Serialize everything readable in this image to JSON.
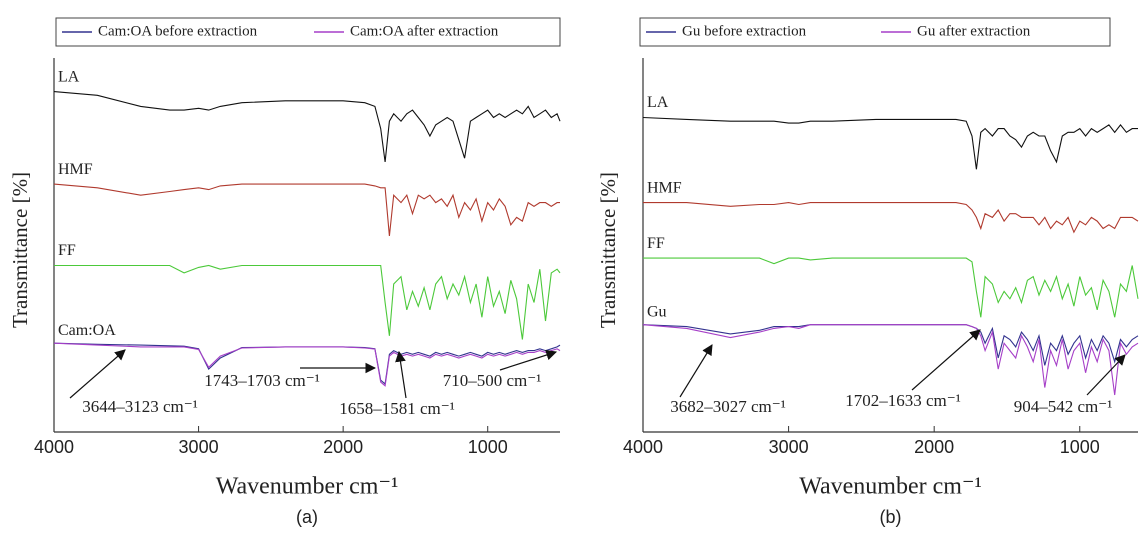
{
  "chart_data": [
    {
      "type": "line",
      "caption": "(a)",
      "xlabel": "Wavenumber cm⁻¹",
      "ylabel": "Transmittance [%]",
      "xlim": [
        4000,
        500
      ],
      "xticks": [
        4000,
        3000,
        2000,
        1000
      ],
      "ylim": [
        0,
        100
      ],
      "legend": "top",
      "sample_label": "Cam:OA",
      "x": [
        4000,
        3700,
        3400,
        3200,
        3100,
        3000,
        2930,
        2850,
        2700,
        2400,
        2000,
        1850,
        1780,
        1740,
        1710,
        1680,
        1650,
        1600,
        1560,
        1520,
        1480,
        1440,
        1400,
        1360,
        1320,
        1280,
        1240,
        1200,
        1160,
        1120,
        1080,
        1040,
        1000,
        960,
        920,
        880,
        840,
        800,
        760,
        720,
        680,
        640,
        600,
        560,
        520,
        500
      ],
      "traces": [
        {
          "label": "LA",
          "color": "#111111",
          "values": [
            92,
            91,
            88,
            87,
            87,
            87.5,
            87,
            88,
            89,
            89.5,
            89.5,
            89,
            88,
            82,
            73,
            84,
            86,
            84,
            86,
            87,
            85,
            83,
            80,
            83,
            84,
            85,
            84,
            79,
            74,
            84,
            85,
            86,
            87,
            85,
            86,
            85,
            86,
            87,
            86,
            88,
            85,
            86,
            87,
            85,
            86,
            84
          ]
        },
        {
          "label": "HMF",
          "color": "#b03a2e",
          "values": [
            67,
            66,
            64,
            65,
            65.5,
            66,
            65.5,
            66.5,
            67,
            67,
            67,
            67,
            66.5,
            66,
            66,
            53,
            64,
            62,
            64,
            59,
            64,
            63,
            64,
            62,
            63,
            61,
            64,
            58,
            62,
            60,
            63,
            57,
            62,
            60,
            63,
            61,
            56,
            58,
            57,
            62,
            61,
            62,
            62,
            61,
            62,
            62
          ]
        },
        {
          "label": "FF",
          "color": "#4cc93a",
          "values": [
            45,
            45,
            45,
            45,
            43,
            44.5,
            45,
            44,
            45,
            45,
            45,
            45,
            45,
            45,
            35,
            26,
            40,
            42,
            33,
            38,
            34,
            39,
            33,
            40,
            42,
            36,
            40,
            37,
            42,
            35,
            40,
            31,
            42,
            34,
            38,
            32,
            41,
            36,
            25,
            40,
            35,
            44,
            30,
            43,
            44,
            43
          ]
        }
      ],
      "series": [
        {
          "name": "Cam:OA before extraction",
          "color": "#33338f",
          "values": [
            24,
            23.7,
            23.5,
            23.3,
            23.2,
            22.5,
            17,
            20,
            22.8,
            23,
            23,
            22.8,
            22.5,
            14,
            13,
            21,
            22,
            21,
            21.5,
            21,
            21.5,
            21,
            20.5,
            21.5,
            21,
            21.5,
            21,
            20.5,
            21,
            21.5,
            21,
            20.5,
            21.5,
            21,
            21.5,
            21,
            21.5,
            22,
            21.5,
            22,
            22,
            22.5,
            22,
            22.5,
            23,
            23.5
          ]
        },
        {
          "name": "Cam:OA after extraction",
          "color": "#a63fc8",
          "values": [
            24,
            23.5,
            23,
            23,
            23,
            22.3,
            17.5,
            20.5,
            22.7,
            23,
            23,
            22.7,
            22.4,
            13.5,
            12.5,
            20.5,
            21.5,
            20.5,
            21,
            20.5,
            21,
            20.5,
            20,
            21,
            20.5,
            21,
            20.5,
            20,
            20.5,
            21,
            20.5,
            20,
            21,
            20.5,
            21,
            20.5,
            21,
            21.5,
            21,
            21.5,
            21.5,
            22,
            21.5,
            22,
            22.5,
            22
          ]
        }
      ],
      "annotations": [
        "3644–3123 cm⁻¹",
        "1743–1703 cm⁻¹",
        "1658–1581 cm⁻¹",
        "710–500 cm⁻¹"
      ]
    },
    {
      "type": "line",
      "caption": "(b)",
      "xlabel": "Wavenumber cm⁻¹",
      "ylabel": "Transmittance [%]",
      "xlim": [
        4000,
        600
      ],
      "xticks": [
        4000,
        3000,
        2000,
        1000
      ],
      "ylim": [
        0,
        100
      ],
      "legend": "top",
      "sample_label": "Gu",
      "x": [
        4000,
        3700,
        3400,
        3200,
        3100,
        3000,
        2930,
        2850,
        2700,
        2400,
        2000,
        1850,
        1780,
        1740,
        1710,
        1680,
        1650,
        1600,
        1560,
        1520,
        1480,
        1440,
        1400,
        1360,
        1320,
        1280,
        1240,
        1200,
        1160,
        1120,
        1080,
        1040,
        1000,
        960,
        920,
        880,
        840,
        800,
        760,
        720,
        680,
        640,
        600
      ],
      "traces": [
        {
          "label": "LA",
          "color": "#111111",
          "values": [
            85,
            84.5,
            84,
            84,
            84,
            83.5,
            83.5,
            84,
            84,
            84.5,
            84.5,
            84.5,
            84,
            80,
            71,
            81,
            82,
            80,
            82,
            82,
            80,
            79,
            77,
            80,
            81,
            80,
            80,
            76,
            73,
            80,
            81,
            81,
            82,
            80,
            82,
            81,
            82,
            83,
            81,
            83,
            81,
            82,
            82
          ]
        },
        {
          "label": "HMF",
          "color": "#b03a2e",
          "values": [
            62,
            62,
            61,
            61.5,
            61.5,
            62,
            61.5,
            62,
            62,
            62,
            62,
            62,
            61.5,
            60,
            58,
            55,
            59,
            58,
            60,
            57,
            59,
            59,
            58,
            58,
            58,
            56,
            58,
            55,
            57,
            56,
            58,
            54,
            57,
            56,
            58,
            57,
            55,
            56,
            55,
            58,
            58,
            58,
            57
          ]
        },
        {
          "label": "FF",
          "color": "#4cc93a",
          "values": [
            47,
            47,
            47,
            47,
            45.5,
            47,
            47,
            46.5,
            47,
            47,
            47,
            47,
            47,
            46,
            38,
            31,
            42,
            40,
            35,
            38,
            36,
            39,
            35,
            41,
            42,
            37,
            41,
            38,
            42,
            36,
            40,
            34,
            42,
            37,
            39,
            33,
            41,
            38,
            31,
            40,
            38,
            45,
            36
          ]
        }
      ],
      "series": [
        {
          "name": "Gu before extraction",
          "color": "#33338f",
          "values": [
            29,
            28.5,
            26.5,
            27.5,
            28.5,
            28.5,
            28.5,
            29,
            29,
            29,
            29,
            29,
            29,
            28.5,
            28,
            27,
            24,
            28,
            20,
            26,
            25,
            23,
            27,
            25,
            22,
            26,
            18,
            24,
            22,
            26,
            21,
            24,
            26,
            20,
            25,
            22,
            26,
            24,
            19,
            25,
            23,
            25,
            26
          ]
        },
        {
          "name": "Gu after extraction",
          "color": "#a63fc8",
          "values": [
            29,
            28,
            25.5,
            27,
            28,
            28.5,
            28,
            29,
            29,
            29,
            29,
            29,
            29,
            28.5,
            28,
            26,
            22,
            27,
            17,
            24,
            22,
            20,
            26,
            23,
            19,
            25,
            12,
            22,
            18,
            25,
            17,
            22,
            24,
            16,
            23,
            19,
            25,
            22,
            10,
            24,
            21,
            23,
            24
          ]
        }
      ],
      "annotations": [
        "3682–3027 cm⁻¹",
        "1702–1633 cm⁻¹",
        "904–542 cm⁻¹"
      ]
    }
  ]
}
